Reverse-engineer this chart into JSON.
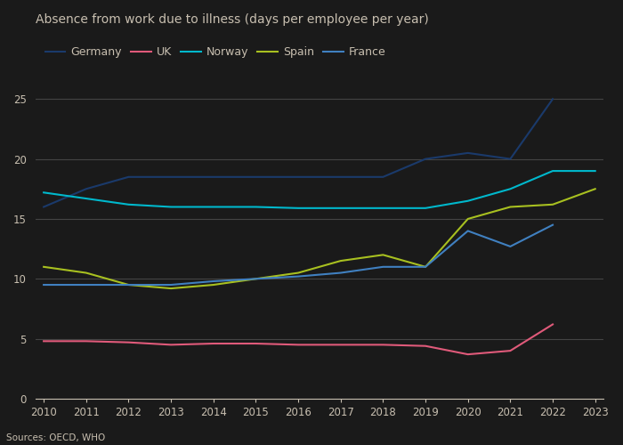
{
  "title": "Absence from work due to illness (days per employee per year)",
  "source": "Sources: OECD, WHO",
  "years": [
    2010,
    2011,
    2012,
    2013,
    2014,
    2015,
    2016,
    2017,
    2018,
    2019,
    2020,
    2021,
    2022,
    2023
  ],
  "series": {
    "Germany": {
      "values": [
        16.0,
        17.5,
        18.5,
        18.5,
        18.5,
        18.5,
        18.5,
        18.5,
        18.5,
        20.0,
        20.5,
        20.0,
        25.0,
        null
      ],
      "color": "#1a3a6b"
    },
    "UK": {
      "values": [
        4.8,
        4.8,
        4.7,
        4.5,
        4.6,
        4.6,
        4.5,
        4.5,
        4.5,
        4.4,
        3.7,
        4.0,
        6.2,
        null
      ],
      "color": "#e05a7a"
    },
    "Norway": {
      "values": [
        17.2,
        16.7,
        16.2,
        16.0,
        16.0,
        16.0,
        15.9,
        15.9,
        15.9,
        15.9,
        16.5,
        17.5,
        19.0,
        19.0
      ],
      "color": "#00b8cc"
    },
    "Spain": {
      "values": [
        11.0,
        10.5,
        9.5,
        9.2,
        9.5,
        10.0,
        10.5,
        11.5,
        12.0,
        11.0,
        15.0,
        16.0,
        16.2,
        17.5
      ],
      "color": "#a8c020"
    },
    "France": {
      "values": [
        9.5,
        9.5,
        9.5,
        9.5,
        9.8,
        10.0,
        10.2,
        10.5,
        11.0,
        11.0,
        14.0,
        12.7,
        14.5,
        null
      ],
      "color": "#4080c0"
    }
  },
  "ylim": [
    0,
    27
  ],
  "yticks": [
    0,
    5,
    10,
    15,
    20,
    25
  ],
  "xlim": [
    2010,
    2023
  ],
  "background_color": "#1a1a1a",
  "plot_bg_color": "#1a1a1a",
  "grid_color": "#444444",
  "text_color": "#c8bfb0",
  "title_fontsize": 10,
  "legend_fontsize": 9,
  "tick_fontsize": 8.5
}
